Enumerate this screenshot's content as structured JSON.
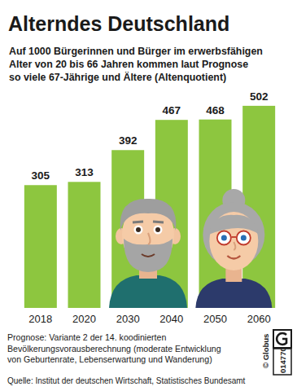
{
  "chart_data": {
    "type": "bar",
    "title": "Alterndes Deutschland",
    "subtitle": [
      "Auf 1000 Bürgerinnen und Bürger im erwerbsfähigen",
      "Alter von 20 bis 66 Jahren kommen laut Prognose",
      "so viele 67-Jährige und Ältere (Altenquotient)"
    ],
    "categories": [
      "2018",
      "2020",
      "2030",
      "2040",
      "2050",
      "2060"
    ],
    "values": [
      305,
      313,
      392,
      467,
      468,
      502
    ],
    "color": "#8dc63f",
    "ylim": [
      0,
      520
    ],
    "data_labels": true,
    "tick_labels": "x",
    "grid": false,
    "notes": [
      "Prognose: Variante 2 der 14. koodinierten",
      "Bevölkerungsvorausberechnung (moderate Entwicklung",
      "von Geburtenrate, Lebenserwartung und Wanderung)"
    ],
    "source": "Quelle: Institut der deutschen Wirtschaft, Statistisches Bundesamt",
    "credit": "© Globus",
    "code": "014770"
  }
}
